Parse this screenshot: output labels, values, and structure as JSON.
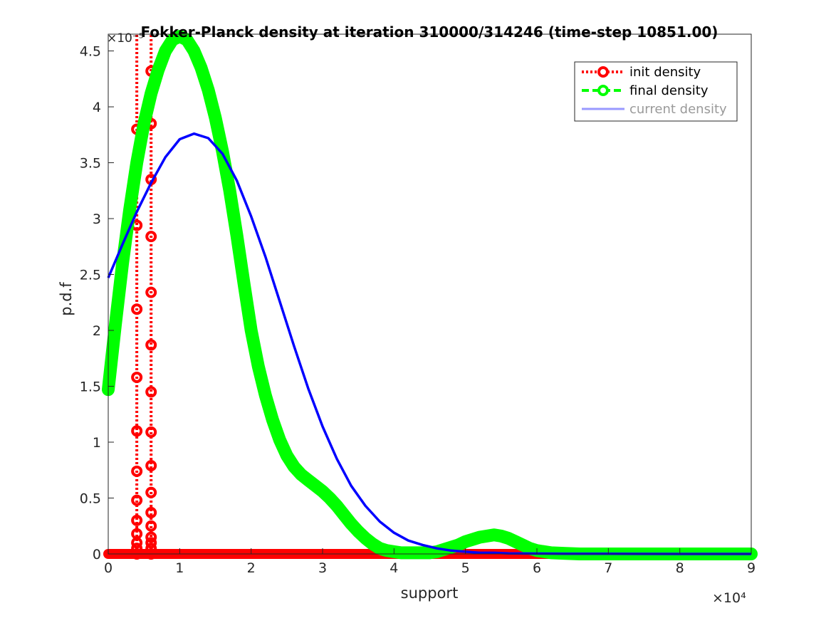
{
  "chart_data": {
    "type": "line",
    "title": "Fokker-Planck density at iteration 310000/314246 (time-step 10851.00)",
    "xlabel": "support",
    "ylabel": "p.d.f",
    "x_exponent": "×10⁴",
    "y_exponent": "×10⁻⁵",
    "xlim": [
      0,
      90000
    ],
    "ylim": [
      0,
      4.65
    ],
    "x_ticks": [
      0,
      1,
      2,
      3,
      4,
      5,
      6,
      7,
      8,
      9
    ],
    "y_ticks": [
      0,
      0.5,
      1,
      1.5,
      2,
      2.5,
      3,
      3.5,
      4,
      4.5
    ],
    "legend_position": "top-right",
    "series": [
      {
        "name": "init density",
        "color": "#ff0000",
        "style": "dotted-circle",
        "spikes": [
          {
            "x": 4000,
            "y": [
              0,
              0.05,
              0.1,
              0.18,
              0.3,
              0.48,
              0.74,
              1.1,
              1.58,
              2.19,
              2.94,
              3.8
            ]
          },
          {
            "x": 6000,
            "y": [
              0,
              0.05,
              0.1,
              0.15,
              0.25,
              0.37,
              0.55,
              0.79,
              1.09,
              1.45,
              1.87,
              2.34,
              2.84,
              3.35,
              3.85,
              4.32
            ]
          }
        ],
        "baseline": [
          0,
          90000
        ]
      },
      {
        "name": "final density",
        "color": "#00ff00",
        "style": "dashed-circle",
        "x": [
          0,
          1000,
          2000,
          3000,
          4000,
          5000,
          6000,
          7000,
          8000,
          9000,
          10000,
          11000,
          12000,
          13000,
          14000,
          15000,
          16000,
          17000,
          18000,
          19000,
          20000,
          21000,
          22000,
          23000,
          24000,
          25000,
          26000,
          27000,
          28000,
          29000,
          30000,
          31000,
          32000,
          33000,
          34000,
          35000,
          36000,
          37000,
          38000,
          39000,
          40000,
          41000,
          42000,
          43000,
          44000,
          45000,
          46000,
          47000,
          48000,
          49000,
          50000,
          51000,
          52000,
          53000,
          54000,
          55000,
          56000,
          57000,
          58000,
          59000,
          60000,
          62000,
          64000,
          66000,
          70000,
          75000,
          80000,
          85000,
          90000
        ],
        "y": [
          1.47,
          2.05,
          2.6,
          3.08,
          3.5,
          3.85,
          4.12,
          4.33,
          4.5,
          4.6,
          4.63,
          4.6,
          4.5,
          4.35,
          4.15,
          3.9,
          3.6,
          3.25,
          2.85,
          2.42,
          2.0,
          1.68,
          1.42,
          1.2,
          1.02,
          0.88,
          0.78,
          0.71,
          0.66,
          0.61,
          0.56,
          0.5,
          0.43,
          0.35,
          0.27,
          0.2,
          0.14,
          0.09,
          0.05,
          0.03,
          0.02,
          0.01,
          0.01,
          0.01,
          0.01,
          0.01,
          0.02,
          0.04,
          0.06,
          0.08,
          0.11,
          0.13,
          0.15,
          0.16,
          0.17,
          0.16,
          0.14,
          0.11,
          0.08,
          0.05,
          0.03,
          0.01,
          0.005,
          0.0,
          0.0,
          0.0,
          0.0,
          0.0,
          0.0
        ]
      },
      {
        "name": "current density",
        "color": "#0000ff",
        "style": "solid",
        "x": [
          0,
          2000,
          4000,
          6000,
          8000,
          10000,
          12000,
          14000,
          16000,
          18000,
          20000,
          22000,
          24000,
          26000,
          28000,
          30000,
          32000,
          34000,
          36000,
          38000,
          40000,
          42000,
          44000,
          46000,
          48000,
          50000,
          52000,
          54000,
          56000,
          58000,
          60000,
          64000,
          70000,
          80000,
          90000
        ],
        "y": [
          2.47,
          2.77,
          3.06,
          3.32,
          3.55,
          3.71,
          3.76,
          3.72,
          3.58,
          3.34,
          3.02,
          2.66,
          2.26,
          1.86,
          1.48,
          1.14,
          0.85,
          0.61,
          0.43,
          0.29,
          0.19,
          0.12,
          0.08,
          0.05,
          0.03,
          0.02,
          0.01,
          0.01,
          0.005,
          0.004,
          0.003,
          0.002,
          0.001,
          0.0,
          0.0
        ]
      }
    ],
    "legend": {
      "entries": [
        "init density",
        "final density",
        "current density"
      ]
    }
  }
}
